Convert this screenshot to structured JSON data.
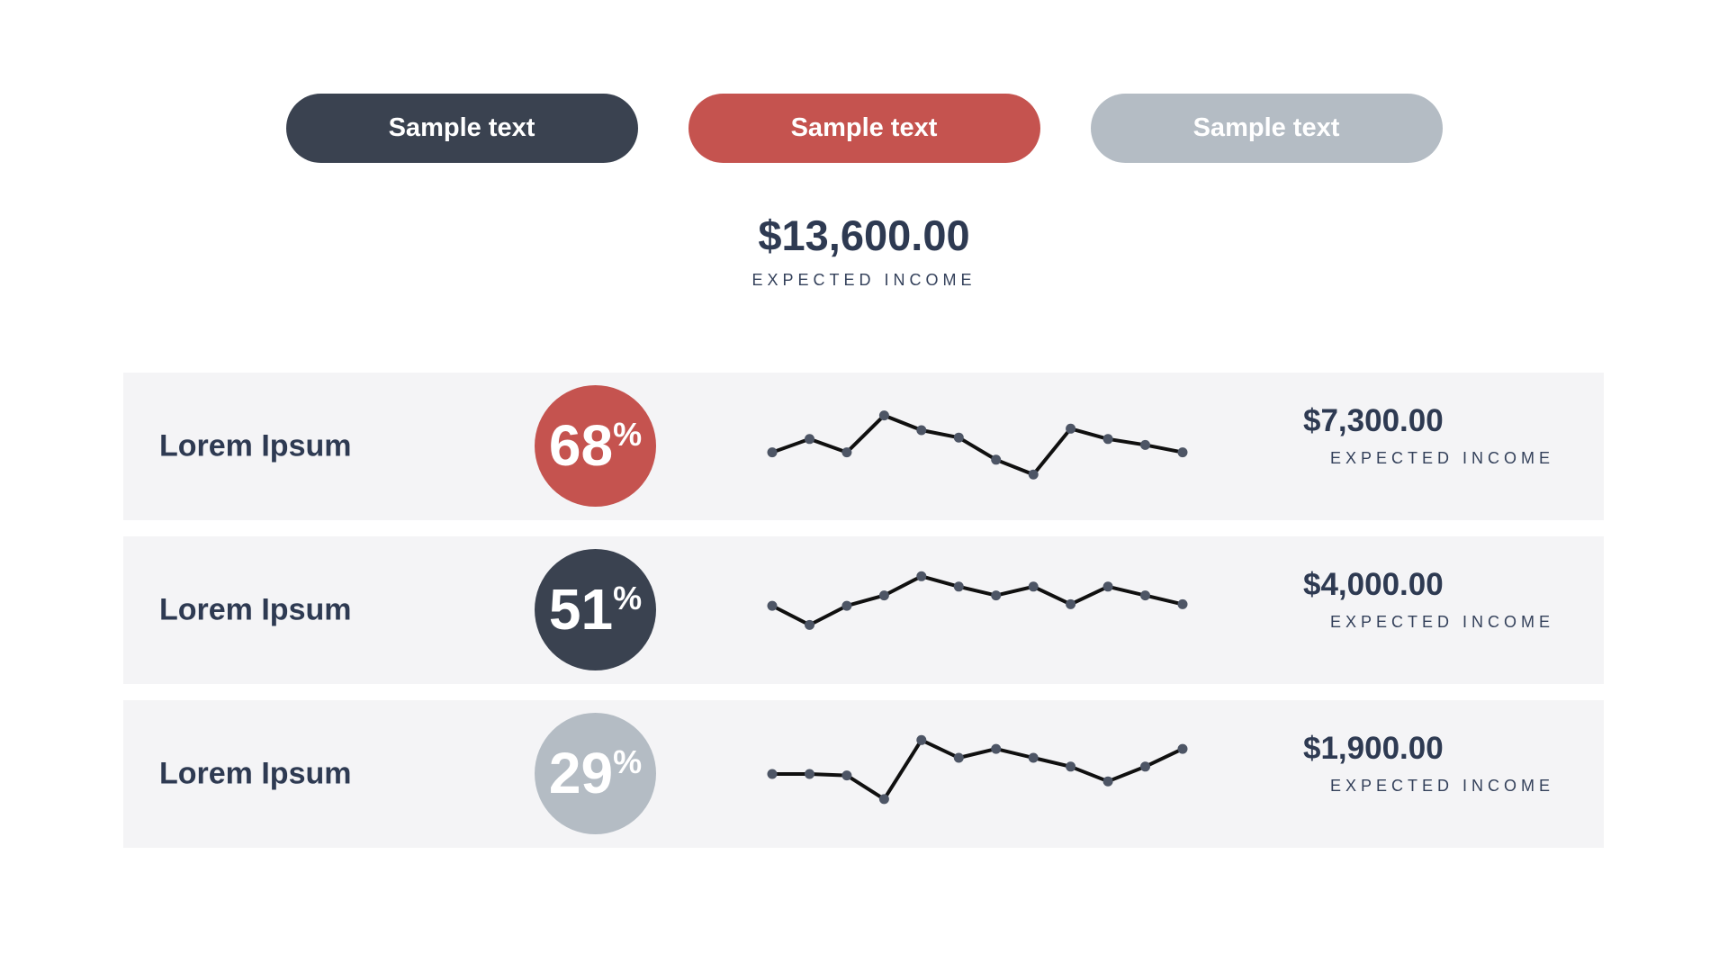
{
  "colors": {
    "navy_text": "#2e3a52",
    "dark_slate": "#3a4250",
    "red": "#c5534f",
    "gray": "#b4bcc4",
    "row_background": "#f4f4f6",
    "spark_line": "#101010",
    "spark_dot": "#4d5565",
    "white": "#ffffff"
  },
  "buttons": [
    {
      "label": "Sample text",
      "bg": "#3a4250"
    },
    {
      "label": "Sample text",
      "bg": "#c5534f"
    },
    {
      "label": "Sample text",
      "bg": "#b4bcc4"
    }
  ],
  "summary": {
    "amount": "$13,600.00",
    "label": "EXPECTED INCOME"
  },
  "rows": [
    {
      "name": "Lorem Ipsum",
      "percent": "68",
      "percent_sign": "%",
      "badge_bg": "#c5534f",
      "amount": "$7,300.00",
      "label": "EXPECTED INCOME"
    },
    {
      "name": "Lorem Ipsum",
      "percent": "51",
      "percent_sign": "%",
      "badge_bg": "#3a4250",
      "amount": "$4,000.00",
      "label": "EXPECTED INCOME"
    },
    {
      "name": "Lorem Ipsum",
      "percent": "29",
      "percent_sign": "%",
      "badge_bg": "#b4bcc4",
      "amount": "$1,900.00",
      "label": "EXPECTED INCOME"
    }
  ],
  "chart_data": [
    {
      "type": "line",
      "title": "Lorem Ipsum 68% sparkline",
      "x": [
        1,
        2,
        3,
        4,
        5,
        6,
        7,
        8,
        9,
        10,
        11,
        12
      ],
      "series": [
        {
          "name": "Lorem Ipsum 68%",
          "values": [
            46,
            55,
            46,
            71,
            61,
            56,
            41,
            31,
            62,
            55,
            51,
            46
          ]
        }
      ],
      "xlabel": "",
      "ylabel": "",
      "ylim": [
        0,
        100
      ],
      "grid": false,
      "legend": "none",
      "axes": "hidden"
    },
    {
      "type": "line",
      "title": "Lorem Ipsum 51% sparkline",
      "x": [
        1,
        2,
        3,
        4,
        5,
        6,
        7,
        8,
        9,
        10,
        11,
        12
      ],
      "series": [
        {
          "name": "Lorem Ipsum 51%",
          "values": [
            53,
            40,
            53,
            60,
            73,
            66,
            60,
            66,
            54,
            66,
            60,
            54
          ]
        }
      ],
      "xlabel": "",
      "ylabel": "",
      "ylim": [
        0,
        100
      ],
      "grid": false,
      "legend": "none",
      "axes": "hidden"
    },
    {
      "type": "line",
      "title": "Lorem Ipsum 29% sparkline",
      "x": [
        1,
        2,
        3,
        4,
        5,
        6,
        7,
        8,
        9,
        10,
        11,
        12
      ],
      "series": [
        {
          "name": "Lorem Ipsum 29%",
          "values": [
            50,
            50,
            49,
            33,
            73,
            61,
            67,
            61,
            55,
            45,
            55,
            67
          ]
        }
      ],
      "xlabel": "",
      "ylabel": "",
      "ylim": [
        0,
        100
      ],
      "grid": false,
      "legend": "none",
      "axes": "hidden"
    }
  ]
}
